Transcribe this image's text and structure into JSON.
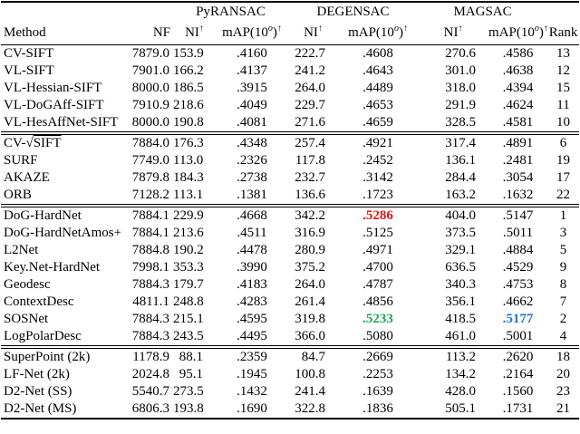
{
  "header": {
    "groups": [
      {
        "label": "PyRANSAC"
      },
      {
        "label": "DEGENSAC"
      },
      {
        "label": "MAGSAC"
      }
    ],
    "method_label": "Method",
    "nf_label": "NF",
    "ni_label": "NI",
    "map_prefix": "mAP(10",
    "map_sup": "o",
    "map_close": ")",
    "up_arrow": "↑",
    "rank_label": "Rank"
  },
  "table": {
    "column_keys": [
      "nf",
      "pyransac-ni",
      "pyransac-map",
      "degensac-ni",
      "degensac-map",
      "magsac-ni",
      "magsac-map",
      "rank"
    ],
    "highlight_colors": {
      "red": "#e31212",
      "green": "#21a459",
      "blue": "#2176d2"
    },
    "blocks": [
      {
        "rows": [
          {
            "method": "CV-SIFT",
            "values": [
              "7879.0",
              "153.9",
              ".4160",
              "222.7",
              ".4608",
              "270.6",
              ".4586",
              "13"
            ]
          },
          {
            "method": "VL-SIFT",
            "values": [
              "7901.0",
              "166.2",
              ".4137",
              "241.2",
              ".4643",
              "301.0",
              ".4638",
              "12"
            ]
          },
          {
            "method": "VL-Hessian-SIFT",
            "values": [
              "8000.0",
              "186.5",
              ".3915",
              "264.0",
              ".4489",
              "318.0",
              ".4394",
              "15"
            ]
          },
          {
            "method": "VL-DoGAff-SIFT",
            "values": [
              "7910.9",
              "218.6",
              ".4049",
              "229.7",
              ".4653",
              "291.9",
              ".4624",
              "11"
            ]
          },
          {
            "method": "VL-HesAffNet-SIFT",
            "values": [
              "8000.0",
              "190.8",
              ".4081",
              "271.6",
              ".4659",
              "328.5",
              ".4581",
              "10"
            ]
          }
        ]
      },
      {
        "rows": [
          {
            "method": "CV-√SIFT",
            "values": [
              "7884.0",
              "176.3",
              ".4348",
              "257.4",
              ".4921",
              "317.4",
              ".4891",
              "6"
            ]
          },
          {
            "method": "SURF",
            "values": [
              "7749.0",
              "113.0",
              ".2326",
              "117.8",
              ".2452",
              "136.1",
              ".2481",
              "19"
            ]
          },
          {
            "method": "AKAZE",
            "values": [
              "7879.8",
              "184.3",
              ".2738",
              "232.7",
              ".3142",
              "284.4",
              ".3054",
              "17"
            ]
          },
          {
            "method": "ORB",
            "values": [
              "7128.2",
              "113.1",
              ".1381",
              "136.6",
              ".1723",
              "163.2",
              ".1632",
              "22"
            ]
          }
        ]
      },
      {
        "rows": [
          {
            "method": "DoG-HardNet",
            "values": [
              "7884.1",
              "229.9",
              ".4668",
              "342.2",
              ".5286",
              "404.0",
              ".5147",
              "1"
            ],
            "highlights": {
              "4": "red"
            }
          },
          {
            "method": "DoG-HardNetAmos+",
            "values": [
              "7884.1",
              "213.6",
              ".4511",
              "316.9",
              ".5125",
              "373.5",
              ".5011",
              "3"
            ]
          },
          {
            "method": "L2Net",
            "values": [
              "7884.8",
              "190.2",
              ".4478",
              "280.9",
              ".4971",
              "329.1",
              ".4884",
              "5"
            ]
          },
          {
            "method": "Key.Net-HardNet",
            "values": [
              "7998.1",
              "353.3",
              ".3990",
              "375.2",
              ".4700",
              "636.5",
              ".4529",
              "9"
            ]
          },
          {
            "method": "Geodesc",
            "values": [
              "7884.3",
              "179.7",
              ".4183",
              "264.0",
              ".4787",
              "340.3",
              ".4753",
              "8"
            ]
          },
          {
            "method": "ContextDesc",
            "values": [
              "4811.1",
              "248.8",
              ".4283",
              "261.4",
              ".4856",
              "356.1",
              ".4662",
              "7"
            ]
          },
          {
            "method": "SOSNet",
            "values": [
              "7884.3",
              "215.1",
              ".4595",
              "319.8",
              ".5233",
              "418.5",
              ".5177",
              "2"
            ],
            "highlights": {
              "4": "green",
              "6": "blue"
            }
          },
          {
            "method": "LogPolarDesc",
            "values": [
              "7884.3",
              "243.5",
              ".4495",
              "366.0",
              ".5080",
              "461.0",
              ".5001",
              "4"
            ]
          }
        ]
      },
      {
        "rows": [
          {
            "method": "SuperPoint (2k)",
            "values": [
              "1178.9",
              "88.1",
              ".2359",
              "84.7",
              ".2669",
              "113.2",
              ".2620",
              "18"
            ]
          },
          {
            "method": "LF-Net (2k)",
            "values": [
              "2024.8",
              "95.1",
              ".1945",
              "100.8",
              ".2253",
              "134.2",
              ".2164",
              "20"
            ]
          },
          {
            "method": "D2-Net (SS)",
            "values": [
              "5540.7",
              "273.5",
              ".1432",
              "241.4",
              ".1639",
              "428.0",
              ".1560",
              "23"
            ]
          },
          {
            "method": "D2-Net (MS)",
            "values": [
              "6806.3",
              "193.8",
              ".1690",
              "322.8",
              ".1836",
              "505.1",
              ".1731",
              "21"
            ]
          }
        ]
      }
    ]
  }
}
